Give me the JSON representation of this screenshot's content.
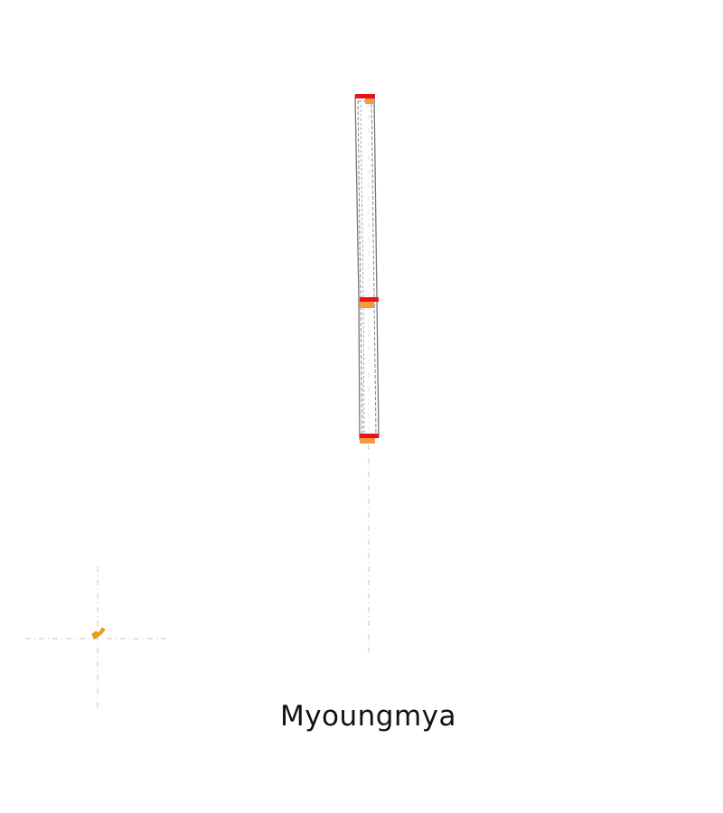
{
  "map": {
    "place_name": "Myoungmya",
    "colors": {
      "background": "#ffffff",
      "outline": "#777777",
      "crosshair": "#cfcfcf",
      "marker_red": "#e8141c",
      "marker_orange": "#f5993a",
      "inset_feature": "#f0a010"
    }
  }
}
